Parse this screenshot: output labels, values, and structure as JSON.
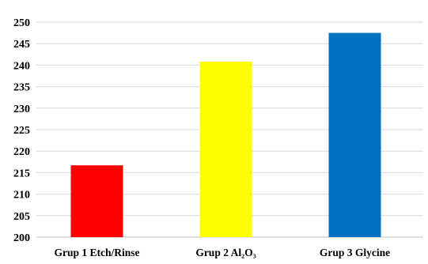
{
  "chart_data": {
    "type": "bar",
    "categories": [
      "Grup 1 Etch/Rinse",
      "Grup 2 Al₂O₃",
      "Grup 3 Glycine"
    ],
    "values": [
      216.7,
      240.8,
      247.5
    ],
    "colors": [
      "#ff0000",
      "#ffff00",
      "#0070c0"
    ],
    "ylim": [
      200,
      250
    ],
    "yticks": [
      200,
      205,
      210,
      215,
      220,
      225,
      230,
      235,
      240,
      245,
      250
    ],
    "title": "",
    "xlabel": "",
    "ylabel": "",
    "grid": true,
    "legend": "none"
  }
}
